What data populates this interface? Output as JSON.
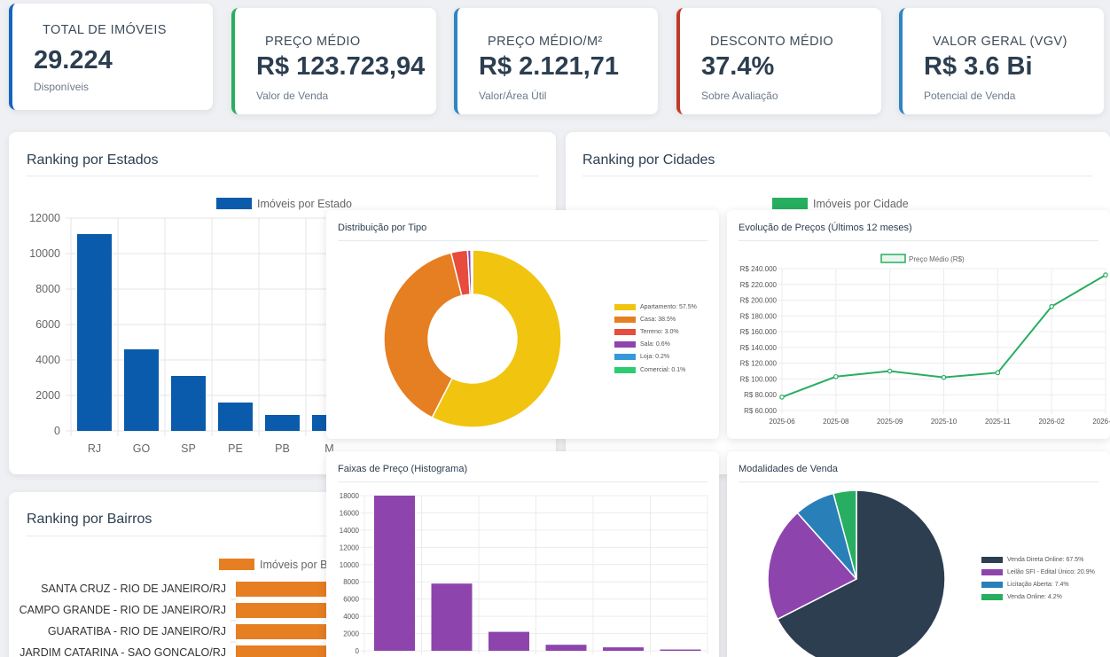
{
  "kpis": [
    {
      "label": "TOTAL DE IMÓVEIS",
      "value": "29.224",
      "sub": "Disponíveis",
      "color": "#1565c0"
    },
    {
      "label": "PREÇO MÉDIO",
      "value": "R$ 123.723,94",
      "sub": "Valor de Venda",
      "color": "#27ae60"
    },
    {
      "label": "PREÇO MÉDIO/M²",
      "value": "R$ 2.121,71",
      "sub": "Valor/Área Útil",
      "color": "#2e86c1"
    },
    {
      "label": "DESCONTO MÉDIO",
      "value": "37.4%",
      "sub": "Sobre Avaliação",
      "color": "#c0392b"
    },
    {
      "label": "VALOR GERAL (VGV)",
      "value": "R$ 3.6 Bi",
      "sub": "Potencial de Venda",
      "color": "#2e86c1"
    }
  ],
  "cards": {
    "estados": "Ranking por Estados",
    "cidades": "Ranking por Cidades",
    "bairros": "Ranking por Bairros"
  },
  "panels": {
    "tipo": "Distribuição por Tipo",
    "evolucao": "Evolução de Preços (Últimos 12 meses)",
    "faixas": "Faixas de Preço (Histograma)",
    "modalidades": "Modalidades de Venda"
  },
  "chart_data": [
    {
      "id": "estados",
      "type": "bar",
      "legend": "Imóveis por Estado",
      "color": "#0a5bab",
      "categories": [
        "RJ",
        "GO",
        "SP",
        "PE",
        "PB",
        "M"
      ],
      "values": [
        11100,
        4600,
        3100,
        1600,
        900,
        900
      ],
      "ylim": [
        0,
        12000
      ],
      "yticks": [
        "0",
        "2000",
        "4000",
        "6000",
        "8000",
        "10000",
        "12000"
      ]
    },
    {
      "id": "cidades",
      "type": "bar",
      "legend": "Imóveis por Cidade",
      "color": "#27ae60"
    },
    {
      "id": "bairros",
      "type": "bar",
      "orientation": "horizontal",
      "legend": "Imóveis por B",
      "color": "#e67e22",
      "categories": [
        "SANTA CRUZ - RIO DE JANEIRO/RJ",
        "CAMPO GRANDE - RIO DE JANEIRO/RJ",
        "GUARATIBA - RIO DE JANEIRO/RJ",
        "JARDIM CATARINA - SAO GONCALO/RJ"
      ],
      "values": [
        100,
        100,
        93,
        93
      ]
    },
    {
      "id": "tipo",
      "type": "pie",
      "donut": true,
      "labels": [
        "Apartamento: 57.5%",
        "Casa: 38.5%",
        "Terreno: 3.0%",
        "Sala: 0.6%",
        "Loja: 0.2%",
        "Comercial: 0.1%"
      ],
      "values": [
        57.5,
        38.5,
        3.0,
        0.6,
        0.2,
        0.1
      ],
      "colors": [
        "#f1c40f",
        "#e67e22",
        "#e74c3c",
        "#8e44ad",
        "#3498db",
        "#2ecc71"
      ]
    },
    {
      "id": "evolucao",
      "type": "line",
      "legend": "Preço Médio (R$)",
      "color": "#27ae60",
      "x": [
        "2025-06",
        "2025-08",
        "2025-09",
        "2025-10",
        "2025-11",
        "2026-02",
        "2026-03"
      ],
      "values": [
        77000,
        103000,
        110000,
        102000,
        108000,
        192000,
        232000
      ],
      "ylim": [
        60000,
        240000
      ],
      "yticks": [
        "R$ 60.000",
        "R$ 80.000",
        "R$ 100.000",
        "R$ 120.000",
        "R$ 140.000",
        "R$ 160.000",
        "R$ 180.000",
        "R$ 200.000",
        "R$ 220.000",
        "R$ 240.000"
      ]
    },
    {
      "id": "faixas",
      "type": "bar",
      "color": "#8e44ad",
      "values": [
        18000,
        7800,
        2200,
        700,
        400,
        150
      ],
      "ylim": [
        0,
        18000
      ],
      "yticks": [
        "0",
        "2000",
        "4000",
        "6000",
        "8000",
        "10000",
        "12000",
        "14000",
        "16000",
        "18000"
      ]
    },
    {
      "id": "modalidades",
      "type": "pie",
      "labels": [
        "Venda Direta Online: 67.5%",
        "Leilão SFI - Edital Único: 20.9%",
        "Licitação Aberta: 7.4%",
        "Venda Online: 4.2%"
      ],
      "values": [
        67.5,
        20.9,
        7.4,
        4.2
      ],
      "colors": [
        "#2c3e50",
        "#8e44ad",
        "#2980b9",
        "#27ae60"
      ]
    }
  ]
}
